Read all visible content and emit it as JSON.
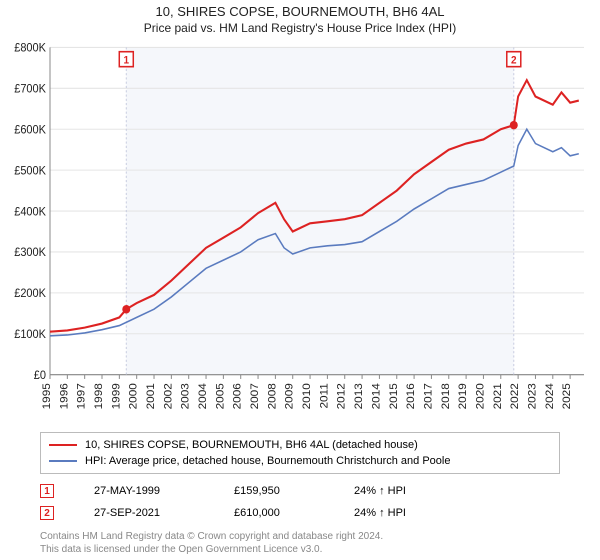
{
  "header": {
    "title": "10, SHIRES COPSE, BOURNEMOUTH, BH6 4AL",
    "subtitle": "Price paid vs. HM Land Registry's House Price Index (HPI)"
  },
  "chart": {
    "type": "line",
    "xlim": [
      1995,
      2025.8
    ],
    "ylim": [
      0,
      800000
    ],
    "ytick_step": 100000,
    "yticks": [
      "£0",
      "£100K",
      "£200K",
      "£300K",
      "£400K",
      "£500K",
      "£600K",
      "£700K",
      "£800K"
    ],
    "xticks": [
      1995,
      1996,
      1997,
      1998,
      1999,
      2000,
      2001,
      2002,
      2003,
      2004,
      2005,
      2006,
      2007,
      2008,
      2009,
      2010,
      2011,
      2012,
      2013,
      2014,
      2015,
      2016,
      2017,
      2018,
      2019,
      2020,
      2021,
      2022,
      2023,
      2024,
      2025
    ],
    "highlight_start": 1999.4,
    "highlight_end": 2021.75,
    "background_color": "#ffffff",
    "grid_color": "#e5e5e5",
    "highlight_color": "#f5f7fb",
    "series": [
      {
        "name": "property",
        "color": "#dd2222",
        "width": 2,
        "points": [
          [
            1995,
            105000
          ],
          [
            1996,
            108000
          ],
          [
            1997,
            115000
          ],
          [
            1998,
            125000
          ],
          [
            1999,
            140000
          ],
          [
            1999.4,
            159950
          ],
          [
            2000,
            175000
          ],
          [
            2001,
            195000
          ],
          [
            2002,
            230000
          ],
          [
            2003,
            270000
          ],
          [
            2004,
            310000
          ],
          [
            2005,
            335000
          ],
          [
            2006,
            360000
          ],
          [
            2007,
            395000
          ],
          [
            2008,
            420000
          ],
          [
            2008.5,
            380000
          ],
          [
            2009,
            350000
          ],
          [
            2010,
            370000
          ],
          [
            2011,
            375000
          ],
          [
            2012,
            380000
          ],
          [
            2013,
            390000
          ],
          [
            2014,
            420000
          ],
          [
            2015,
            450000
          ],
          [
            2016,
            490000
          ],
          [
            2017,
            520000
          ],
          [
            2018,
            550000
          ],
          [
            2019,
            565000
          ],
          [
            2020,
            575000
          ],
          [
            2021,
            600000
          ],
          [
            2021.75,
            610000
          ],
          [
            2022,
            680000
          ],
          [
            2022.5,
            720000
          ],
          [
            2023,
            680000
          ],
          [
            2024,
            660000
          ],
          [
            2024.5,
            690000
          ],
          [
            2025,
            665000
          ],
          [
            2025.5,
            670000
          ]
        ]
      },
      {
        "name": "hpi",
        "color": "#5a7bbf",
        "width": 1.5,
        "points": [
          [
            1995,
            95000
          ],
          [
            1996,
            97000
          ],
          [
            1997,
            102000
          ],
          [
            1998,
            110000
          ],
          [
            1999,
            120000
          ],
          [
            2000,
            140000
          ],
          [
            2001,
            160000
          ],
          [
            2002,
            190000
          ],
          [
            2003,
            225000
          ],
          [
            2004,
            260000
          ],
          [
            2005,
            280000
          ],
          [
            2006,
            300000
          ],
          [
            2007,
            330000
          ],
          [
            2008,
            345000
          ],
          [
            2008.5,
            310000
          ],
          [
            2009,
            295000
          ],
          [
            2010,
            310000
          ],
          [
            2011,
            315000
          ],
          [
            2012,
            318000
          ],
          [
            2013,
            325000
          ],
          [
            2014,
            350000
          ],
          [
            2015,
            375000
          ],
          [
            2016,
            405000
          ],
          [
            2017,
            430000
          ],
          [
            2018,
            455000
          ],
          [
            2019,
            465000
          ],
          [
            2020,
            475000
          ],
          [
            2021,
            495000
          ],
          [
            2021.75,
            510000
          ],
          [
            2022,
            560000
          ],
          [
            2022.5,
            600000
          ],
          [
            2023,
            565000
          ],
          [
            2024,
            545000
          ],
          [
            2024.5,
            555000
          ],
          [
            2025,
            535000
          ],
          [
            2025.5,
            540000
          ]
        ]
      }
    ],
    "markers": [
      {
        "id": "1",
        "x": 1999.4,
        "price": 159950
      },
      {
        "id": "2",
        "x": 2021.75,
        "price": 610000
      }
    ]
  },
  "legend": {
    "items": [
      {
        "color": "#dd2222",
        "label": "10, SHIRES COPSE, BOURNEMOUTH, BH6 4AL (detached house)"
      },
      {
        "color": "#5a7bbf",
        "label": "HPI: Average price, detached house, Bournemouth Christchurch and Poole"
      }
    ]
  },
  "marker_rows": [
    {
      "id": "1",
      "date": "27-MAY-1999",
      "price": "£159,950",
      "pct": "24% ↑ HPI"
    },
    {
      "id": "2",
      "date": "27-SEP-2021",
      "price": "£610,000",
      "pct": "24% ↑ HPI"
    }
  ],
  "footer": {
    "line1": "Contains HM Land Registry data © Crown copyright and database right 2024.",
    "line2": "This data is licensed under the Open Government Licence v3.0."
  }
}
